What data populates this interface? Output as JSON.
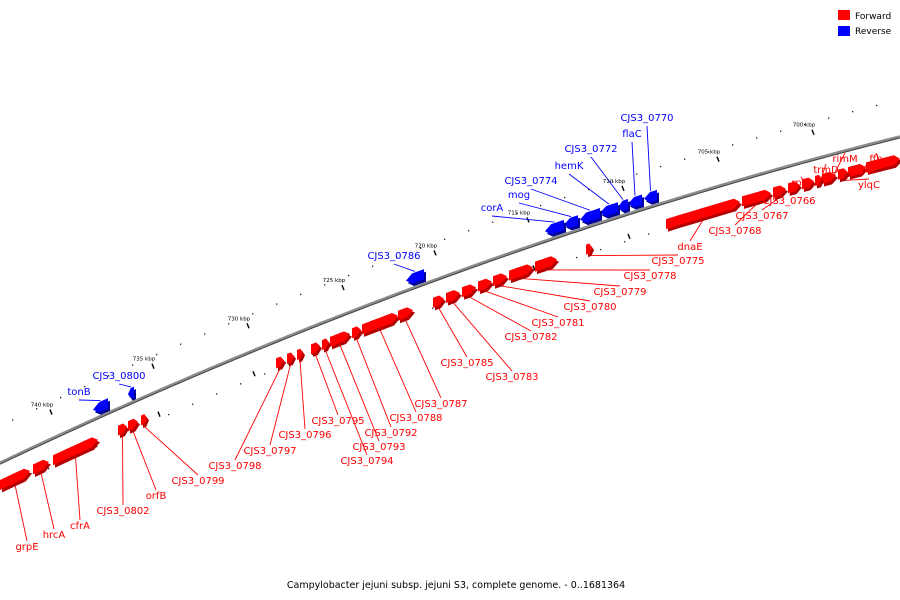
{
  "colors": {
    "forward": "#ff0000",
    "forward_dark": "#b30000",
    "reverse": "#0000ff",
    "reverse_dark": "#00009a",
    "backbone": "#8c8c8c"
  },
  "legend": [
    {
      "label": "Forward",
      "color": "#ff0000"
    },
    {
      "label": "Reverse",
      "color": "#0000ff"
    }
  ],
  "caption": "Campylobacter jejuni subsp. jejuni S3, complete genome. - 0..1681364",
  "ticks": [
    "700 kbp",
    "705 kbp",
    "710 kbp",
    "715 kbp",
    "720 kbp",
    "725 kbp",
    "730 kbp",
    "735 kbp",
    "740 kbp"
  ],
  "genes_forward": [
    "ffh",
    "rpsP",
    "ylqC",
    "rimM",
    "trmD",
    "rplS",
    "CJS3_0766",
    "CJS3_0767",
    "CJS3_0768",
    "dnaE",
    "CJS3_0775",
    "CJS3_0778",
    "CJS3_0779",
    "CJS3_0780",
    "CJS3_0781",
    "CJS3_0782",
    "CJS3_0783",
    "CJS3_0785",
    "CJS3_0787",
    "CJS3_0788",
    "CJS3_0792",
    "CJS3_0793",
    "CJS3_0794",
    "CJS3_0795",
    "CJS3_0796",
    "CJS3_0797",
    "CJS3_0798",
    "CJS3_0799",
    "orfB",
    "CJS3_0802",
    "cfrA",
    "hrcA",
    "grpE"
  ],
  "genes_reverse": [
    "CJS3_0770",
    "flaC",
    "CJS3_0772",
    "hemK",
    "CJS3_0774",
    "mog",
    "corA",
    "CJS3_0786",
    "CJS3_0800",
    "tonB"
  ]
}
